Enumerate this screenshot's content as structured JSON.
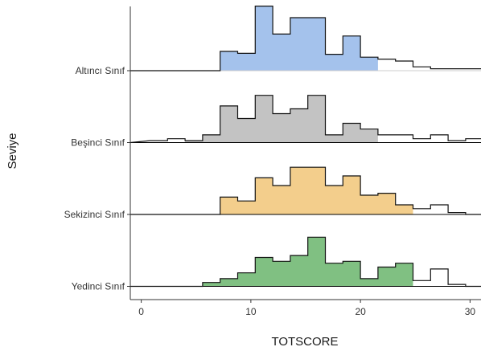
{
  "chart_data": {
    "type": "histogram-ridgeline",
    "xlabel": "TOTSCORE",
    "ylabel": "Seviye",
    "xlim": [
      -1,
      31
    ],
    "xticks": [
      0,
      10,
      20,
      30
    ],
    "x_tick_labels": [
      "0",
      "10",
      "20",
      "30"
    ],
    "bin_width": 1.6,
    "bin_start": 0.8,
    "grid": false,
    "legend": "none",
    "series": [
      {
        "name": "Altıncı Sınıf",
        "color": "#a4c2ec",
        "baseline_color": "#cccccc",
        "density": [
          0,
          0,
          0,
          0,
          0.2,
          0.18,
          0.67,
          0.38,
          0.55,
          0.55,
          0.17,
          0.36,
          0.14,
          0.12,
          0.1,
          0.04,
          0.02,
          0.02,
          0.02,
          0.01
        ],
        "filled_range": [
          -1,
          23
        ]
      },
      {
        "name": "Beşinci Sınıf",
        "color": "#c3c3c3",
        "baseline_color": "#000000",
        "density": [
          0.02,
          0.04,
          0.02,
          0.08,
          0.38,
          0.25,
          0.49,
          0.3,
          0.35,
          0.49,
          0.08,
          0.2,
          0.14,
          0.08,
          0.08,
          0.04,
          0.08,
          0.02,
          0.04,
          0.02
        ],
        "filled_range": [
          3,
          23
        ]
      },
      {
        "name": "Sekizinci Sınıf",
        "color": "#f3ce8c",
        "baseline_color": "#000000",
        "density": [
          0,
          0,
          0,
          0,
          0.18,
          0.14,
          0.38,
          0.3,
          0.49,
          0.49,
          0.3,
          0.4,
          0.2,
          0.22,
          0.1,
          0.06,
          0.1,
          0.02,
          0,
          0
        ],
        "filled_range": [
          6,
          26
        ]
      },
      {
        "name": "Yedinci Sınıf",
        "color": "#80c082",
        "baseline_color": "#000000",
        "density": [
          0,
          0,
          0,
          0.04,
          0.08,
          0.14,
          0.3,
          0.26,
          0.32,
          0.51,
          0.24,
          0.26,
          0.08,
          0.2,
          0.24,
          0.06,
          0.18,
          0.02,
          0,
          0
        ],
        "filled_range": [
          4,
          26
        ]
      }
    ]
  }
}
